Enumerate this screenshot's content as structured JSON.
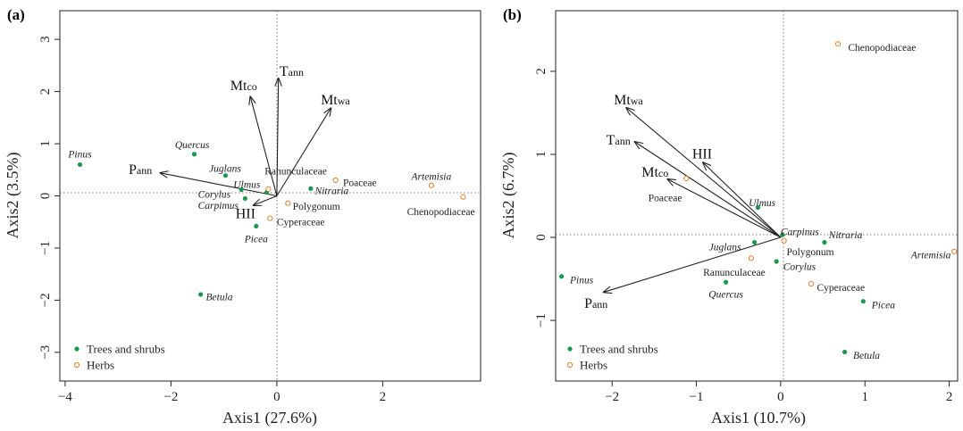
{
  "colors": {
    "trees": "#1a9850",
    "herbs": "#e08030",
    "axis": "#222222"
  },
  "chart_data": [
    {
      "type": "scatter",
      "panel_label": "(a)",
      "xlabel": "Axis1 (27.6%)",
      "ylabel": "Axis2 (3.5%)",
      "xlim": [
        -4.1,
        3.85
      ],
      "ylim": [
        -3.55,
        3.55
      ],
      "xticks": [
        -4,
        -2,
        0,
        2
      ],
      "yticks": [
        3,
        2,
        1,
        0,
        -1,
        -2,
        -3
      ],
      "xtick_labels": [
        "−4",
        "−2",
        "0",
        "2"
      ],
      "ytick_labels": [
        "3",
        "2",
        "1",
        "0",
        "−1",
        "−2",
        "−3"
      ],
      "legend": {
        "placement": "bottom-left",
        "entries": [
          {
            "label": "Trees and shrubs",
            "group": "trees"
          },
          {
            "label": "Herbs",
            "group": "herbs"
          }
        ]
      },
      "points": [
        {
          "label": "Pinus",
          "group": "trees",
          "italic": true,
          "x": -3.72,
          "y": 0.6,
          "lx": -3.72,
          "ly": 0.8,
          "anchor": "middle"
        },
        {
          "label": "Quercus",
          "group": "trees",
          "italic": true,
          "x": -1.56,
          "y": 0.8,
          "lx": -1.6,
          "ly": 0.98,
          "anchor": "middle"
        },
        {
          "label": "Juglans",
          "group": "trees",
          "italic": true,
          "x": -0.97,
          "y": 0.39,
          "lx": -1.28,
          "ly": 0.53,
          "anchor": "start"
        },
        {
          "label": "Ulmus",
          "group": "trees",
          "italic": true,
          "x": -0.67,
          "y": 0.12,
          "lx": -0.82,
          "ly": 0.22,
          "anchor": "start"
        },
        {
          "label": "Corylus",
          "group": "trees",
          "italic": true,
          "x": -0.19,
          "y": 0.07,
          "lx": -1.49,
          "ly": 0.03,
          "anchor": "start"
        },
        {
          "label": "Carpimus",
          "group": "trees",
          "italic": true,
          "x": -0.6,
          "y": -0.05,
          "lx": -1.49,
          "ly": -0.18,
          "anchor": "start"
        },
        {
          "label": "Nitraria",
          "group": "trees",
          "italic": true,
          "x": 0.64,
          "y": 0.14,
          "lx": 0.72,
          "ly": 0.1,
          "anchor": "start"
        },
        {
          "label": "Picea",
          "group": "trees",
          "italic": true,
          "x": -0.39,
          "y": -0.58,
          "lx": -0.39,
          "ly": -0.82,
          "anchor": "middle"
        },
        {
          "label": "Betula",
          "group": "trees",
          "italic": true,
          "x": -1.44,
          "y": -1.89,
          "lx": -1.34,
          "ly": -1.93,
          "anchor": "start"
        },
        {
          "label": "Ranunculaceae",
          "group": "herbs",
          "italic": false,
          "x": -0.16,
          "y": 0.13,
          "lx": -0.23,
          "ly": 0.48,
          "anchor": "start"
        },
        {
          "label": "Poaceae",
          "group": "herbs",
          "italic": false,
          "x": 1.11,
          "y": 0.3,
          "lx": 1.25,
          "ly": 0.26,
          "anchor": "start"
        },
        {
          "label": "Polygonum",
          "group": "herbs",
          "italic": false,
          "x": 0.21,
          "y": -0.14,
          "lx": 0.3,
          "ly": -0.2,
          "anchor": "start"
        },
        {
          "label": "Cyperaceae",
          "group": "herbs",
          "italic": false,
          "x": -0.13,
          "y": -0.43,
          "lx": 0.0,
          "ly": -0.5,
          "anchor": "start"
        },
        {
          "label": "Artemisia",
          "group": "herbs",
          "italic": true,
          "x": 2.92,
          "y": 0.2,
          "lx": 2.92,
          "ly": 0.38,
          "anchor": "middle"
        },
        {
          "label": "Chenopodiaceae",
          "group": "herbs",
          "italic": false,
          "x": 3.52,
          "y": -0.02,
          "lx": 3.1,
          "ly": -0.3,
          "anchor": "middle"
        }
      ],
      "vectors": [
        {
          "base": "T",
          "sub": "ann",
          "x": 0.03,
          "y": 2.25,
          "lx": 0.05,
          "ly": 2.3,
          "anchor": "start"
        },
        {
          "base": "Mt",
          "sub": "co",
          "x": -0.5,
          "y": 1.9,
          "lx": -0.88,
          "ly": 2.03,
          "anchor": "start"
        },
        {
          "base": "Mt",
          "sub": "wa",
          "x": 1.02,
          "y": 1.68,
          "lx": 0.83,
          "ly": 1.75,
          "anchor": "start"
        },
        {
          "base": "P",
          "sub": "ann",
          "x": -2.2,
          "y": 0.44,
          "lx": -2.8,
          "ly": 0.42,
          "anchor": "start"
        },
        {
          "base": "HII",
          "sub": "",
          "x": -0.44,
          "y": -0.18,
          "lx": -0.78,
          "ly": -0.43,
          "anchor": "start"
        }
      ]
    },
    {
      "type": "scatter",
      "panel_label": "(b)",
      "xlabel": "Axis1 (10.7%)",
      "ylabel": "Axis2 (6.7%)",
      "xlim": [
        -2.67,
        2.1
      ],
      "ylim": [
        -1.73,
        2.73
      ],
      "xticks": [
        -2,
        -1,
        0,
        1,
        2
      ],
      "yticks": [
        2,
        1,
        0,
        -1
      ],
      "xtick_labels": [
        "−2",
        "−1",
        "0",
        "1",
        "2"
      ],
      "ytick_labels": [
        "2",
        "1",
        "0",
        "−1"
      ],
      "legend": {
        "placement": "bottom-left",
        "entries": [
          {
            "label": "Trees and shrubs",
            "group": "trees"
          },
          {
            "label": "Herbs",
            "group": "herbs"
          }
        ]
      },
      "points": [
        {
          "label": "Chenopodiaceae",
          "group": "herbs",
          "italic": false,
          "x": 0.68,
          "y": 2.33,
          "lx": 0.8,
          "ly": 2.29,
          "anchor": "start"
        },
        {
          "label": "Ulmus",
          "group": "trees",
          "italic": true,
          "x": -0.27,
          "y": 0.36,
          "lx": -0.22,
          "ly": 0.42,
          "anchor": "middle"
        },
        {
          "label": "Poaceae",
          "group": "herbs",
          "italic": false,
          "x": -1.12,
          "y": 0.71,
          "lx": -1.57,
          "ly": 0.48,
          "anchor": "start"
        },
        {
          "label": "Carpinus",
          "group": "trees",
          "italic": true,
          "x": 0.02,
          "y": 0.03,
          "lx": 0.0,
          "ly": 0.07,
          "anchor": "start"
        },
        {
          "label": "Nitraria",
          "group": "trees",
          "italic": true,
          "x": 0.52,
          "y": -0.06,
          "lx": 0.57,
          "ly": 0.03,
          "anchor": "start"
        },
        {
          "label": "Polygonum",
          "group": "herbs",
          "italic": false,
          "x": 0.04,
          "y": -0.04,
          "lx": 0.07,
          "ly": -0.17,
          "anchor": "start"
        },
        {
          "label": "Juglans",
          "group": "trees",
          "italic": true,
          "x": -0.31,
          "y": -0.06,
          "lx": -0.85,
          "ly": -0.11,
          "anchor": "start"
        },
        {
          "label": "Corylus",
          "group": "trees",
          "italic": true,
          "x": -0.05,
          "y": -0.29,
          "lx": 0.03,
          "ly": -0.35,
          "anchor": "start"
        },
        {
          "label": "Ranunculaceae",
          "group": "herbs",
          "italic": false,
          "x": -0.35,
          "y": -0.25,
          "lx": -0.92,
          "ly": -0.42,
          "anchor": "start"
        },
        {
          "label": "Quercus",
          "group": "trees",
          "italic": true,
          "x": -0.65,
          "y": -0.54,
          "lx": -0.65,
          "ly": -0.68,
          "anchor": "middle"
        },
        {
          "label": "Cyperaceae",
          "group": "herbs",
          "italic": false,
          "x": 0.36,
          "y": -0.56,
          "lx": 0.43,
          "ly": -0.6,
          "anchor": "start"
        },
        {
          "label": "Picea",
          "group": "trees",
          "italic": true,
          "x": 0.98,
          "y": -0.77,
          "lx": 1.08,
          "ly": -0.81,
          "anchor": "start"
        },
        {
          "label": "Betula",
          "group": "trees",
          "italic": true,
          "x": 0.76,
          "y": -1.38,
          "lx": 0.86,
          "ly": -1.42,
          "anchor": "start"
        },
        {
          "label": "Pinus",
          "group": "trees",
          "italic": true,
          "x": -2.6,
          "y": -0.47,
          "lx": -2.5,
          "ly": -0.51,
          "anchor": "start"
        },
        {
          "label": "Artemisia",
          "group": "herbs",
          "italic": true,
          "x": 2.06,
          "y": -0.17,
          "lx": 2.02,
          "ly": -0.21,
          "anchor": "end"
        }
      ],
      "vectors": [
        {
          "base": "Mt",
          "sub": "wa",
          "x": -1.83,
          "y": 1.56,
          "lx": -1.98,
          "ly": 1.6,
          "anchor": "start"
        },
        {
          "base": "T",
          "sub": "ann",
          "x": -1.73,
          "y": 1.15,
          "lx": -2.07,
          "ly": 1.12,
          "anchor": "start"
        },
        {
          "base": "HII",
          "sub": "",
          "x": -0.92,
          "y": 0.9,
          "lx": -1.05,
          "ly": 0.95,
          "anchor": "start"
        },
        {
          "base": "Mt",
          "sub": "co",
          "x": -1.34,
          "y": 0.7,
          "lx": -1.65,
          "ly": 0.73,
          "anchor": "start"
        },
        {
          "base": "P",
          "sub": "ann",
          "x": -2.1,
          "y": -0.66,
          "lx": -2.33,
          "ly": -0.85,
          "anchor": "start"
        }
      ]
    }
  ]
}
